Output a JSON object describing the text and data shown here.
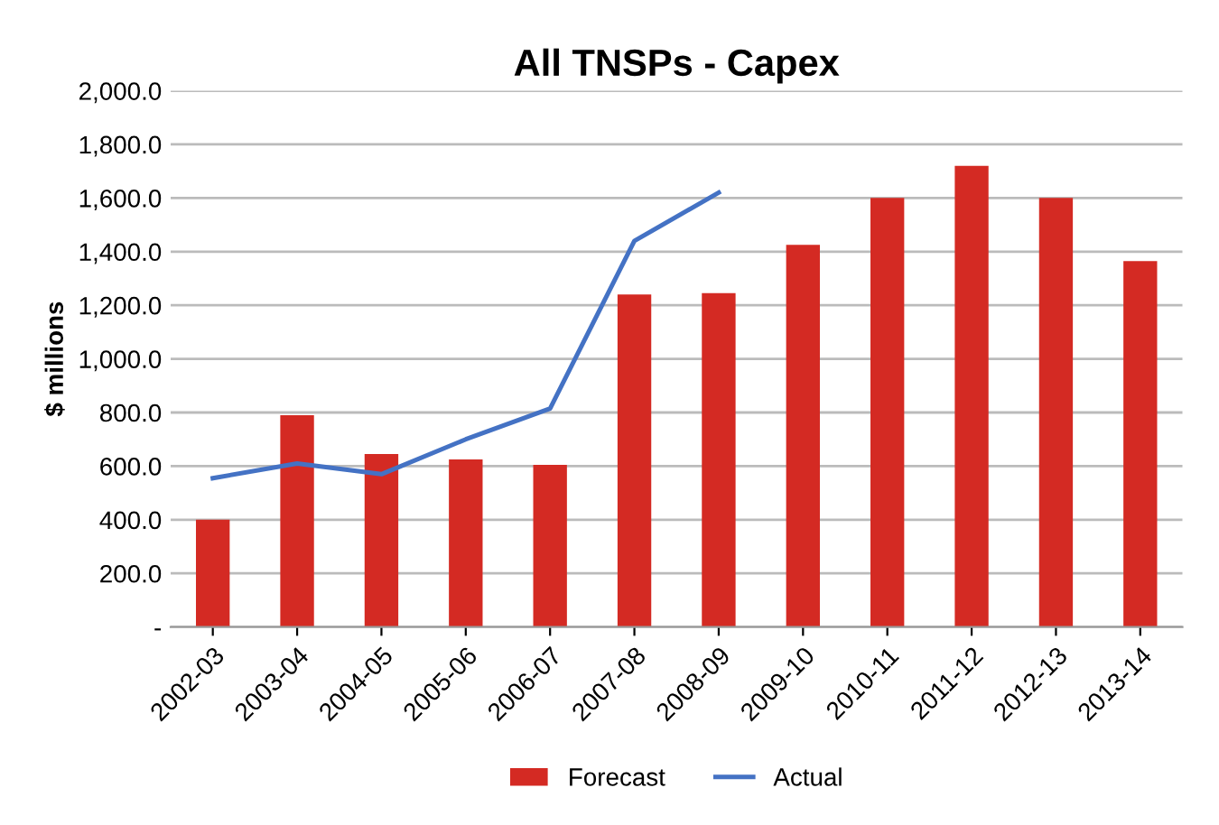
{
  "chart_data": {
    "type": "bar",
    "title": "All TNSPs - Capex",
    "ylabel": "$ millions",
    "categories": [
      "2002-03",
      "2003-04",
      "2004-05",
      "2005-06",
      "2006-07",
      "2007-08",
      "2008-09",
      "2009-10",
      "2010-11",
      "2011-12",
      "2012-13",
      "2013-14"
    ],
    "series": [
      {
        "name": "Forecast",
        "color": "#d42a23",
        "values": [
          400,
          790,
          645,
          625,
          605,
          1240,
          1245,
          1425,
          1600,
          1720,
          1600,
          1365
        ]
      },
      {
        "name": "Actual",
        "type": "line",
        "color": "#4472c4",
        "values": [
          555,
          610,
          570,
          700,
          815,
          1440,
          1620,
          null,
          null,
          null,
          null,
          null
        ]
      }
    ],
    "ylim": [
      0,
      2000
    ],
    "yticks": [
      {
        "value": 0,
        "label": "-"
      },
      {
        "value": 200,
        "label": "200.0"
      },
      {
        "value": 400,
        "label": "400.0"
      },
      {
        "value": 600,
        "label": "600.0"
      },
      {
        "value": 800,
        "label": "800.0"
      },
      {
        "value": 1000,
        "label": "1,000.0"
      },
      {
        "value": 1200,
        "label": "1,200.0"
      },
      {
        "value": 1400,
        "label": "1,400.0"
      },
      {
        "value": 1600,
        "label": "1,600.0"
      },
      {
        "value": 1800,
        "label": "1,800.0"
      },
      {
        "value": 2000,
        "label": "2,000.0"
      }
    ],
    "grid": "y",
    "legend": "bottom"
  }
}
